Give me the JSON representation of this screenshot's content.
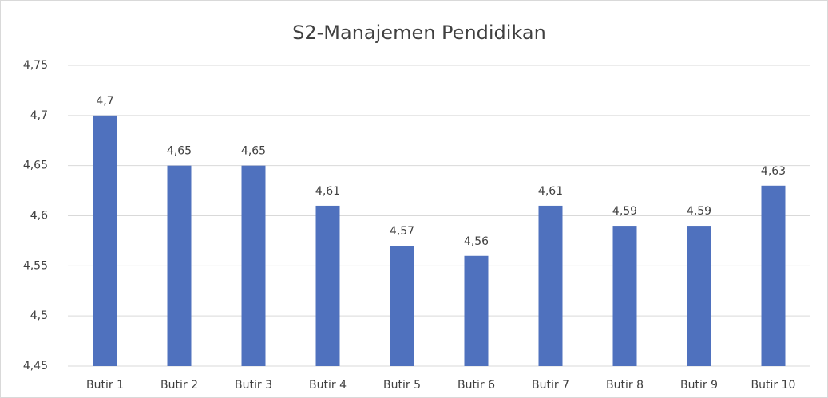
{
  "chart_data": {
    "type": "bar",
    "title": "S2-Manajemen Pendidikan",
    "categories": [
      "Butir 1",
      "Butir 2",
      "Butir 3",
      "Butir 4",
      "Butir 5",
      "Butir 6",
      "Butir 7",
      "Butir 8",
      "Butir 9",
      "Butir 10"
    ],
    "values": [
      4.7,
      4.65,
      4.65,
      4.61,
      4.57,
      4.56,
      4.61,
      4.59,
      4.59,
      4.63
    ],
    "value_labels": [
      "4,7",
      "4,65",
      "4,65",
      "4,61",
      "4,57",
      "4,56",
      "4,61",
      "4,59",
      "4,59",
      "4,63"
    ],
    "color": "#4f71be",
    "ylim": [
      4.45,
      4.75
    ],
    "yticks": [
      {
        "value": 4.45,
        "label": "4,45"
      },
      {
        "value": 4.5,
        "label": "4,5"
      },
      {
        "value": 4.55,
        "label": "4,55"
      },
      {
        "value": 4.6,
        "label": "4,6"
      },
      {
        "value": 4.65,
        "label": "4,65"
      },
      {
        "value": 4.7,
        "label": "4,7"
      },
      {
        "value": 4.75,
        "label": "4,75"
      }
    ],
    "grid": true
  }
}
